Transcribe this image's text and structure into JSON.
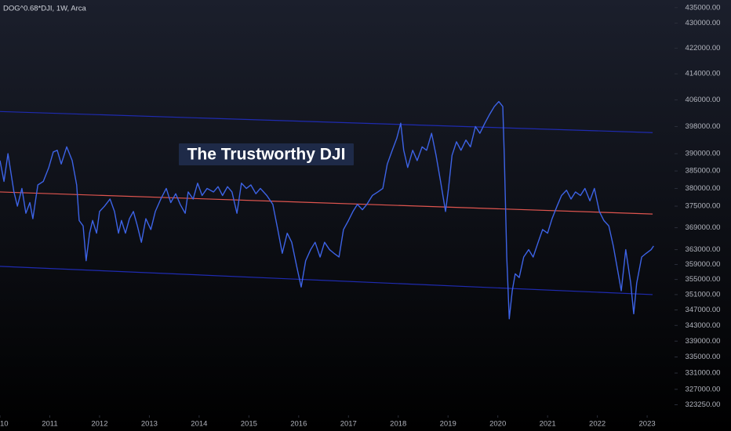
{
  "chart_data": {
    "type": "line",
    "title": "DOG^0.68*DJI, 1W, Arca",
    "annotation": "The Trustworthy DJI",
    "log_scale": true,
    "xlim": [
      2010.0,
      2023.55
    ],
    "xticks": [
      {
        "value": 2010,
        "label": "10"
      },
      2011,
      2012,
      2013,
      2014,
      2015,
      2016,
      2017,
      2018,
      2019,
      2020,
      2021,
      2022,
      2023
    ],
    "ylim": [
      320700,
      437500
    ],
    "yticks": [
      {
        "value": 435000,
        "label": "435000.00"
      },
      {
        "value": 430000,
        "label": "430000.00"
      },
      {
        "value": 422000,
        "label": "422000.00"
      },
      {
        "value": 414000,
        "label": "414000.00"
      },
      {
        "value": 406000,
        "label": "406000.00"
      },
      {
        "value": 398000,
        "label": "398000.00"
      },
      {
        "value": 390000,
        "label": "390000.00"
      },
      {
        "value": 385000,
        "label": "385000.00"
      },
      {
        "value": 380000,
        "label": "380000.00"
      },
      {
        "value": 375000,
        "label": "375000.00"
      },
      {
        "value": 369000,
        "label": "369000.00"
      },
      {
        "value": 363000,
        "label": "363000.00"
      },
      {
        "value": 359000,
        "label": "359000.00"
      },
      {
        "value": 355000,
        "label": "355000.00"
      },
      {
        "value": 351000,
        "label": "351000.00"
      },
      {
        "value": 347000,
        "label": "347000.00"
      },
      {
        "value": 343000,
        "label": "343000.00"
      },
      {
        "value": 339000,
        "label": "339000.00"
      },
      {
        "value": 335000,
        "label": "335000.00"
      },
      {
        "value": 331000,
        "label": "331000.00"
      },
      {
        "value": 327000,
        "label": "327000.00"
      },
      {
        "value": 323250,
        "label": "323250.00"
      }
    ],
    "series": [
      {
        "color": "#3d63e6",
        "x": [
          2010.0,
          2010.08,
          2010.16,
          2010.28,
          2010.35,
          2010.44,
          2010.52,
          2010.6,
          2010.66,
          2010.76,
          2010.87,
          2010.98,
          2011.07,
          2011.15,
          2011.23,
          2011.34,
          2011.45,
          2011.54,
          2011.59,
          2011.67,
          2011.73,
          2011.8,
          2011.86,
          2011.94,
          2012.0,
          2012.1,
          2012.21,
          2012.3,
          2012.38,
          2012.44,
          2012.52,
          2012.6,
          2012.68,
          2012.76,
          2012.84,
          2012.93,
          2013.03,
          2013.12,
          2013.23,
          2013.34,
          2013.43,
          2013.53,
          2013.62,
          2013.72,
          2013.78,
          2013.88,
          2013.97,
          2014.06,
          2014.16,
          2014.29,
          2014.38,
          2014.47,
          2014.57,
          2014.66,
          2014.76,
          2014.85,
          2014.95,
          2015.04,
          2015.14,
          2015.23,
          2015.36,
          2015.48,
          2015.58,
          2015.67,
          2015.77,
          2015.86,
          2015.96,
          2016.05,
          2016.14,
          2016.24,
          2016.33,
          2016.43,
          2016.52,
          2016.62,
          2016.71,
          2016.81,
          2016.9,
          2017.0,
          2017.09,
          2017.18,
          2017.28,
          2017.37,
          2017.48,
          2017.59,
          2017.69,
          2017.78,
          2017.88,
          2017.97,
          2018.05,
          2018.11,
          2018.19,
          2018.29,
          2018.38,
          2018.48,
          2018.57,
          2018.67,
          2018.76,
          2018.85,
          2018.95,
          2019.01,
          2019.08,
          2019.17,
          2019.26,
          2019.36,
          2019.45,
          2019.55,
          2019.64,
          2019.74,
          2019.83,
          2019.93,
          2020.02,
          2020.1,
          2020.13,
          2020.18,
          2020.23,
          2020.29,
          2020.35,
          2020.43,
          2020.52,
          2020.62,
          2020.71,
          2020.81,
          2020.9,
          2021.0,
          2021.09,
          2021.19,
          2021.28,
          2021.38,
          2021.47,
          2021.56,
          2021.66,
          2021.75,
          2021.85,
          2021.94,
          2022.04,
          2022.13,
          2022.23,
          2022.32,
          2022.42,
          2022.48,
          2022.57,
          2022.67,
          2022.73,
          2022.79,
          2022.89,
          2022.98,
          2023.08,
          2023.13
        ],
        "values": [
          388000,
          382000,
          390000,
          379000,
          375000,
          380000,
          373000,
          376000,
          371500,
          381000,
          382000,
          386000,
          390500,
          391000,
          387000,
          392000,
          388000,
          381000,
          371000,
          369500,
          360000,
          367500,
          371000,
          367500,
          373500,
          375000,
          377000,
          373500,
          367500,
          371000,
          367500,
          371500,
          373500,
          369500,
          365000,
          371500,
          368500,
          373500,
          377000,
          380000,
          376000,
          378500,
          375500,
          373000,
          379000,
          377000,
          381500,
          378000,
          380000,
          379000,
          380500,
          378000,
          380500,
          379000,
          373000,
          381500,
          380000,
          381000,
          378500,
          380000,
          378000,
          375500,
          368500,
          362000,
          367500,
          365000,
          358500,
          353000,
          360000,
          363000,
          365000,
          361000,
          365000,
          363000,
          362000,
          361000,
          368500,
          371000,
          373500,
          375500,
          374000,
          375500,
          378000,
          379000,
          380000,
          387000,
          391000,
          394500,
          399000,
          391000,
          386000,
          391000,
          388000,
          392000,
          391000,
          396000,
          389500,
          382000,
          373500,
          380000,
          389500,
          393500,
          391000,
          394000,
          392000,
          398000,
          396000,
          399000,
          401500,
          404000,
          405500,
          404000,
          389500,
          361000,
          344700,
          352000,
          356500,
          355500,
          361000,
          363000,
          361000,
          365000,
          368500,
          367500,
          371500,
          375000,
          378000,
          379500,
          377000,
          379000,
          378000,
          380000,
          376500,
          380000,
          373500,
          371000,
          369500,
          364000,
          356500,
          352000,
          363000,
          354000,
          346000,
          354000,
          361000,
          362000,
          363000,
          364000
        ]
      }
    ],
    "channel": [
      {
        "color": "#1f2bb0",
        "x": [
          2010.0,
          2023.11
        ],
        "values": [
          402500,
          396200
        ]
      },
      {
        "color": "#e0554f",
        "x": [
          2010.0,
          2023.11
        ],
        "values": [
          379000,
          372800
        ]
      },
      {
        "color": "#1f2bb0",
        "x": [
          2010.0,
          2023.11
        ],
        "values": [
          358500,
          351000
        ]
      }
    ]
  }
}
